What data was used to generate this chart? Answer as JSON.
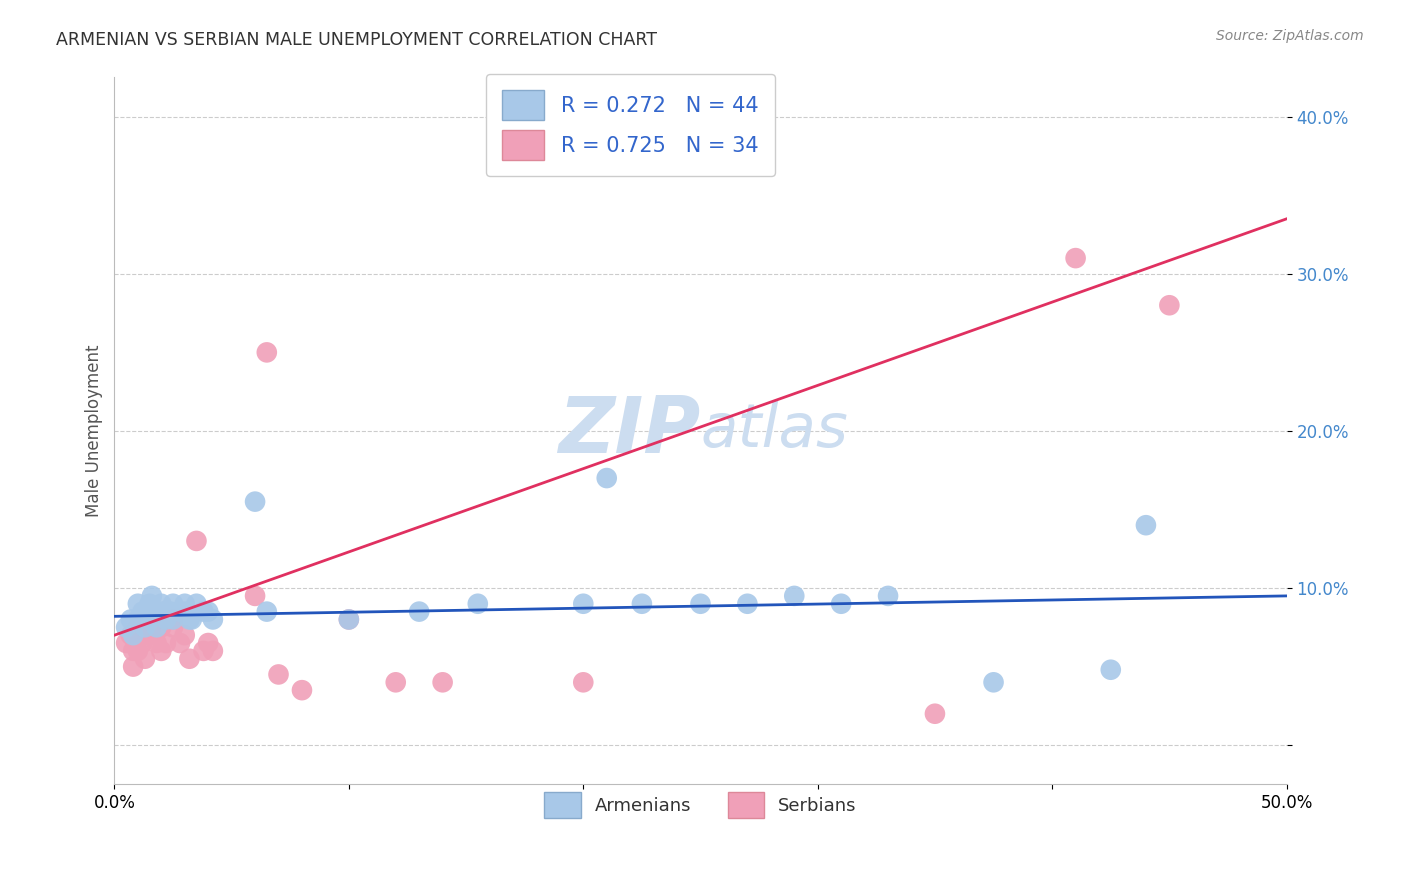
{
  "title": "ARMENIAN VS SERBIAN MALE UNEMPLOYMENT CORRELATION CHART",
  "source": "Source: ZipAtlas.com",
  "ylabel": "Male Unemployment",
  "yticks": [
    0.0,
    0.1,
    0.2,
    0.3,
    0.4
  ],
  "ytick_labels": [
    "",
    "10.0%",
    "20.0%",
    "30.0%",
    "40.0%"
  ],
  "xlim": [
    0.0,
    0.5
  ],
  "ylim": [
    -0.025,
    0.425
  ],
  "armenian_R": 0.272,
  "armenian_N": 44,
  "serbian_R": 0.725,
  "serbian_N": 34,
  "armenian_color": "#a8c8e8",
  "armenian_line_color": "#2255bb",
  "serbian_color": "#f0a0b8",
  "serbian_line_color": "#e03060",
  "watermark_color": "#ccddf0",
  "background_color": "#ffffff",
  "grid_color": "#cccccc",
  "armenian_x": [
    0.005,
    0.007,
    0.008,
    0.01,
    0.01,
    0.012,
    0.013,
    0.015,
    0.015,
    0.016,
    0.018,
    0.018,
    0.02,
    0.02,
    0.022,
    0.022,
    0.024,
    0.025,
    0.025,
    0.028,
    0.03,
    0.03,
    0.032,
    0.033,
    0.035,
    0.038,
    0.04,
    0.042,
    0.06,
    0.065,
    0.1,
    0.13,
    0.155,
    0.2,
    0.21,
    0.225,
    0.25,
    0.27,
    0.29,
    0.31,
    0.33,
    0.375,
    0.425,
    0.44
  ],
  "armenian_y": [
    0.075,
    0.08,
    0.07,
    0.09,
    0.08,
    0.085,
    0.075,
    0.09,
    0.08,
    0.095,
    0.075,
    0.085,
    0.085,
    0.09,
    0.085,
    0.08,
    0.085,
    0.08,
    0.09,
    0.085,
    0.085,
    0.09,
    0.08,
    0.08,
    0.09,
    0.085,
    0.085,
    0.08,
    0.155,
    0.085,
    0.08,
    0.085,
    0.09,
    0.09,
    0.17,
    0.09,
    0.09,
    0.09,
    0.095,
    0.09,
    0.095,
    0.04,
    0.048,
    0.14
  ],
  "serbian_x": [
    0.005,
    0.007,
    0.008,
    0.008,
    0.01,
    0.01,
    0.012,
    0.013,
    0.015,
    0.016,
    0.018,
    0.02,
    0.02,
    0.022,
    0.025,
    0.025,
    0.028,
    0.03,
    0.032,
    0.035,
    0.038,
    0.04,
    0.042,
    0.06,
    0.065,
    0.07,
    0.08,
    0.1,
    0.12,
    0.14,
    0.2,
    0.35,
    0.41,
    0.45
  ],
  "serbian_y": [
    0.065,
    0.07,
    0.06,
    0.05,
    0.075,
    0.06,
    0.065,
    0.055,
    0.07,
    0.075,
    0.065,
    0.06,
    0.075,
    0.065,
    0.075,
    0.08,
    0.065,
    0.07,
    0.055,
    0.13,
    0.06,
    0.065,
    0.06,
    0.095,
    0.25,
    0.045,
    0.035,
    0.08,
    0.04,
    0.04,
    0.04,
    0.02,
    0.31,
    0.28
  ]
}
